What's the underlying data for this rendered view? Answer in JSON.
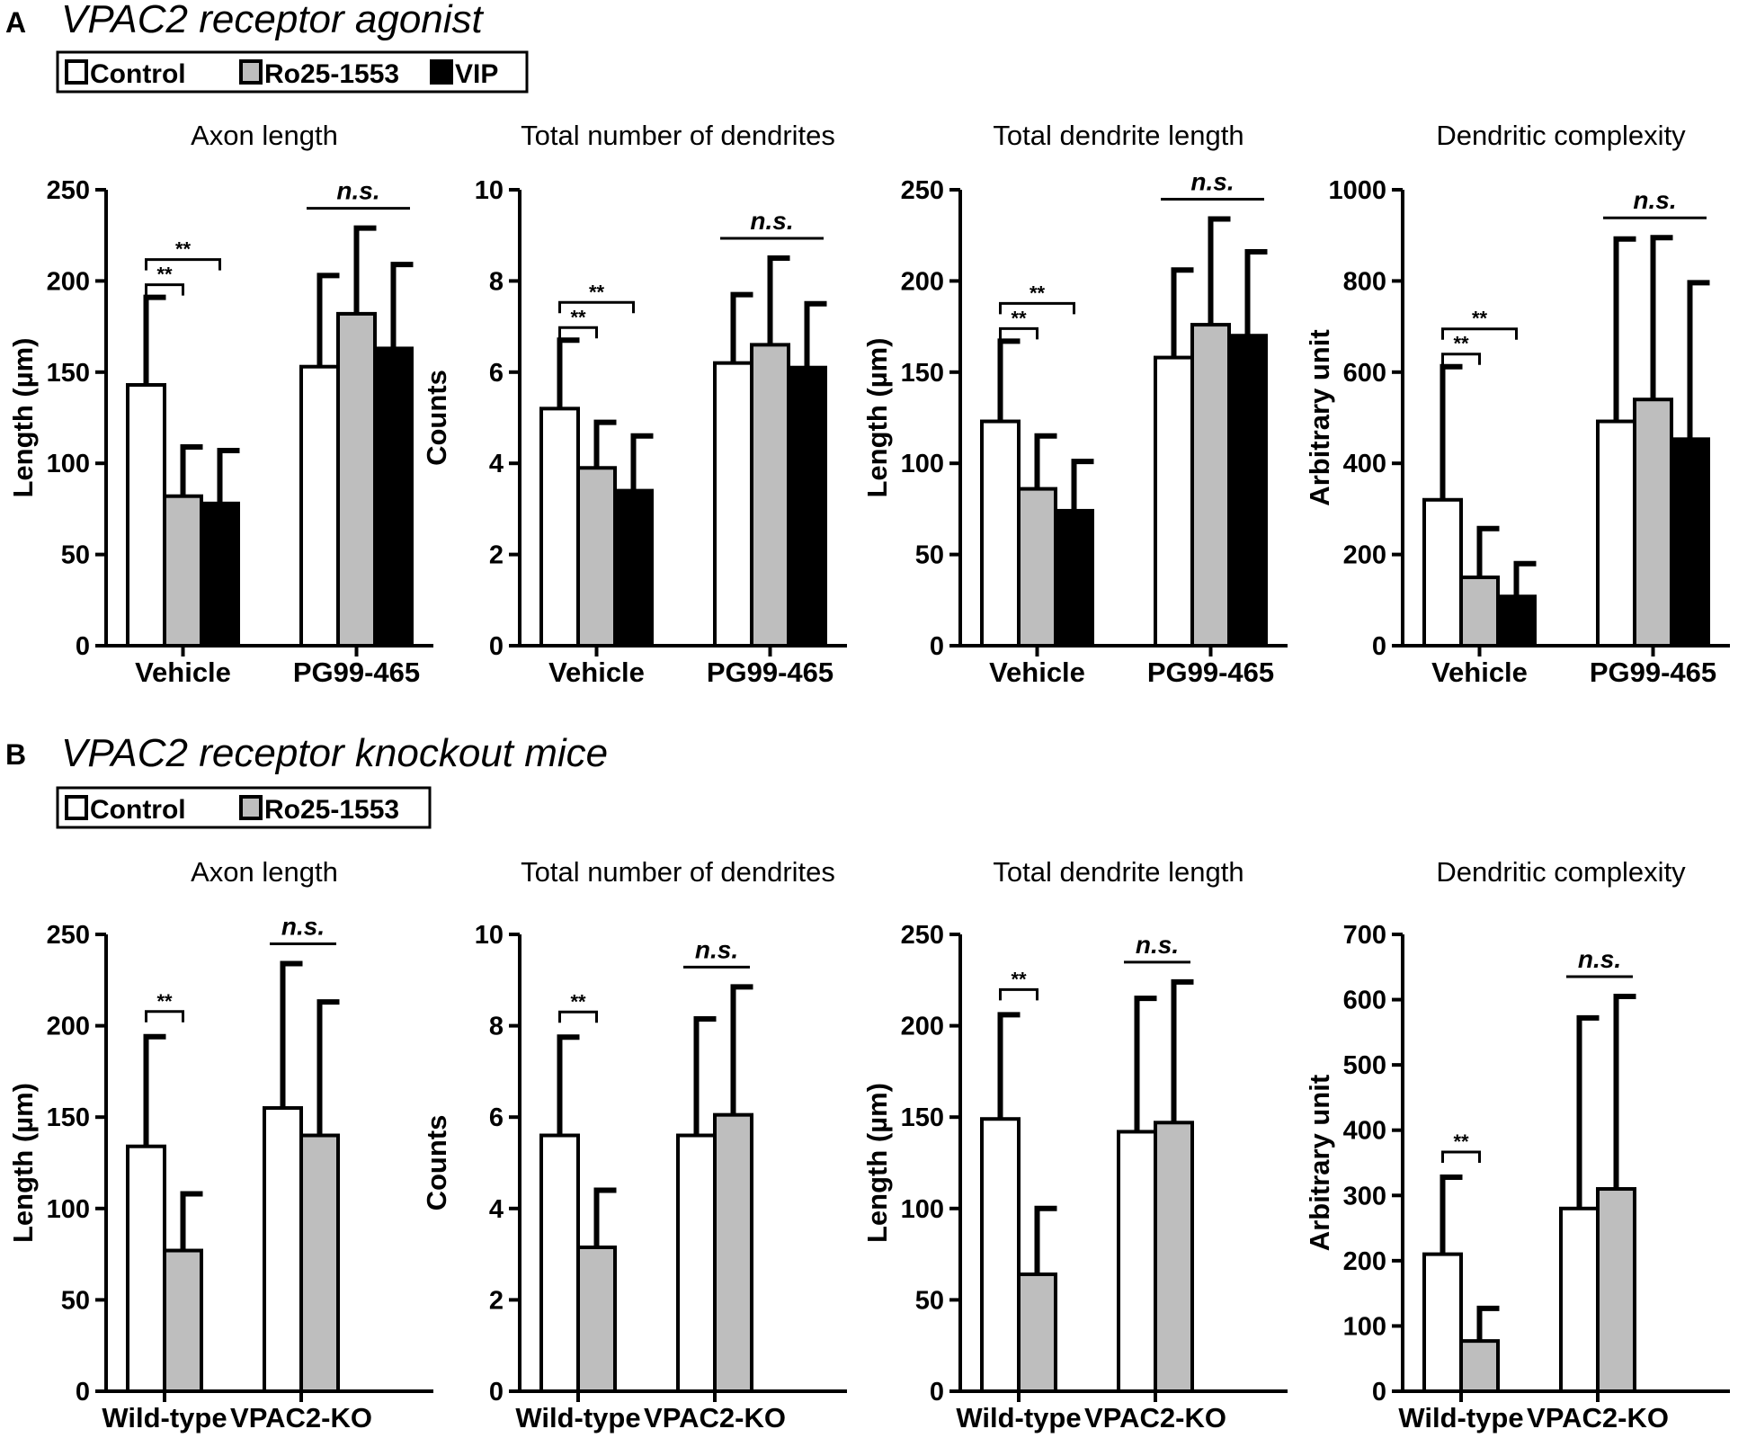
{
  "figure": {
    "panels": [
      {
        "letter": "A",
        "title": "VPAC2 receptor agonist",
        "legend": [
          {
            "label": "Control",
            "color": "#ffffff"
          },
          {
            "label": "Ro25-1553",
            "color": "#bebebe"
          },
          {
            "label": "VIP",
            "color": "#000000"
          }
        ]
      },
      {
        "letter": "B",
        "title": "VPAC2 receptor knockout mice",
        "legend": [
          {
            "label": "Control",
            "color": "#ffffff"
          },
          {
            "label": "Ro25-1553",
            "color": "#bebebe"
          }
        ]
      }
    ],
    "sig_label": "**",
    "ns_label": "n.s."
  },
  "chart_data": [
    {
      "type": "bar",
      "panel": "A",
      "title": "Axon length",
      "ylabel": "Length (µm)",
      "xlabel": "",
      "ylim": [
        0,
        250
      ],
      "yticks": [
        0,
        50,
        100,
        150,
        200,
        250
      ],
      "categories": [
        "Vehicle",
        "PG99-465"
      ],
      "series": [
        {
          "name": "Control",
          "color": "#ffffff",
          "values": [
            143,
            153
          ],
          "errors": [
            48,
            50
          ]
        },
        {
          "name": "Ro25-1553",
          "color": "#bebebe",
          "values": [
            82,
            182
          ],
          "errors": [
            27,
            47
          ]
        },
        {
          "name": "VIP",
          "color": "#000000",
          "values": [
            78,
            163
          ],
          "errors": [
            29,
            46
          ]
        }
      ],
      "significance": [
        {
          "group": 0,
          "from": 0,
          "to": 1,
          "label": "**"
        },
        {
          "group": 0,
          "from": 0,
          "to": 2,
          "label": "**"
        }
      ],
      "ns": [
        {
          "group": 1,
          "label": "n.s."
        }
      ]
    },
    {
      "type": "bar",
      "panel": "A",
      "title": "Total number of dendrites",
      "ylabel": "Counts",
      "xlabel": "",
      "ylim": [
        0,
        10
      ],
      "yticks": [
        0,
        2,
        4,
        6,
        8,
        10
      ],
      "categories": [
        "Vehicle",
        "PG99-465"
      ],
      "series": [
        {
          "name": "Control",
          "color": "#ffffff",
          "values": [
            5.2,
            6.2
          ],
          "errors": [
            1.5,
            1.5
          ]
        },
        {
          "name": "Ro25-1553",
          "color": "#bebebe",
          "values": [
            3.9,
            6.6
          ],
          "errors": [
            1.0,
            1.9
          ]
        },
        {
          "name": "VIP",
          "color": "#000000",
          "values": [
            3.4,
            6.1
          ],
          "errors": [
            1.2,
            1.4
          ]
        }
      ],
      "significance": [
        {
          "group": 0,
          "from": 0,
          "to": 1,
          "label": "**"
        },
        {
          "group": 0,
          "from": 0,
          "to": 2,
          "label": "**"
        }
      ],
      "ns": [
        {
          "group": 1,
          "label": "n.s."
        }
      ]
    },
    {
      "type": "bar",
      "panel": "A",
      "title": "Total dendrite length",
      "ylabel": "Length (µm)",
      "xlabel": "",
      "ylim": [
        0,
        250
      ],
      "yticks": [
        0,
        50,
        100,
        150,
        200,
        250
      ],
      "categories": [
        "Vehicle",
        "PG99-465"
      ],
      "series": [
        {
          "name": "Control",
          "color": "#ffffff",
          "values": [
            123,
            158
          ],
          "errors": [
            44,
            48
          ]
        },
        {
          "name": "Ro25-1553",
          "color": "#bebebe",
          "values": [
            86,
            176
          ],
          "errors": [
            29,
            58
          ]
        },
        {
          "name": "VIP",
          "color": "#000000",
          "values": [
            74,
            170
          ],
          "errors": [
            27,
            46
          ]
        }
      ],
      "significance": [
        {
          "group": 0,
          "from": 0,
          "to": 1,
          "label": "**"
        },
        {
          "group": 0,
          "from": 0,
          "to": 2,
          "label": "**"
        }
      ],
      "ns": [
        {
          "group": 1,
          "label": "n.s."
        }
      ]
    },
    {
      "type": "bar",
      "panel": "A",
      "title": "Dendritic complexity",
      "ylabel": "Arbitrary unit",
      "xlabel": "",
      "ylim": [
        0,
        1000
      ],
      "yticks": [
        0,
        200,
        400,
        600,
        800,
        1000
      ],
      "categories": [
        "Vehicle",
        "PG99-465"
      ],
      "series": [
        {
          "name": "Control",
          "color": "#ffffff",
          "values": [
            320,
            492
          ],
          "errors": [
            292,
            400
          ]
        },
        {
          "name": "Ro25-1553",
          "color": "#bebebe",
          "values": [
            150,
            540
          ],
          "errors": [
            107,
            355
          ]
        },
        {
          "name": "VIP",
          "color": "#000000",
          "values": [
            108,
            453
          ],
          "errors": [
            72,
            343
          ]
        }
      ],
      "significance": [
        {
          "group": 0,
          "from": 0,
          "to": 1,
          "label": "**"
        },
        {
          "group": 0,
          "from": 0,
          "to": 2,
          "label": "**"
        }
      ],
      "ns": [
        {
          "group": 1,
          "label": "n.s."
        }
      ]
    },
    {
      "type": "bar",
      "panel": "B",
      "title": "Axon length",
      "ylabel": "Length (µm)",
      "xlabel": "",
      "ylim": [
        0,
        250
      ],
      "yticks": [
        0,
        50,
        100,
        150,
        200,
        250
      ],
      "categories": [
        "Wild-type",
        "VPAC2-KO"
      ],
      "series": [
        {
          "name": "Control",
          "color": "#ffffff",
          "values": [
            134,
            155
          ],
          "errors": [
            60,
            79
          ]
        },
        {
          "name": "Ro25-1553",
          "color": "#bebebe",
          "values": [
            77,
            140
          ],
          "errors": [
            31,
            73
          ]
        }
      ],
      "significance": [
        {
          "group": 0,
          "from": 0,
          "to": 1,
          "label": "**"
        }
      ],
      "ns": [
        {
          "group": 1,
          "label": "n.s."
        }
      ]
    },
    {
      "type": "bar",
      "panel": "B",
      "title": "Total number of dendrites",
      "ylabel": "Counts",
      "xlabel": "",
      "ylim": [
        0,
        10
      ],
      "yticks": [
        0,
        2,
        4,
        6,
        8,
        10
      ],
      "categories": [
        "Wild-type",
        "VPAC2-KO"
      ],
      "series": [
        {
          "name": "Control",
          "color": "#ffffff",
          "values": [
            5.6,
            5.6
          ],
          "errors": [
            2.15,
            2.55
          ]
        },
        {
          "name": "Ro25-1553",
          "color": "#bebebe",
          "values": [
            3.15,
            6.05
          ],
          "errors": [
            1.25,
            2.8
          ]
        }
      ],
      "significance": [
        {
          "group": 0,
          "from": 0,
          "to": 1,
          "label": "**"
        }
      ],
      "ns": [
        {
          "group": 1,
          "label": "n.s."
        }
      ]
    },
    {
      "type": "bar",
      "panel": "B",
      "title": "Total dendrite length",
      "ylabel": "Length (µm)",
      "xlabel": "",
      "ylim": [
        0,
        250
      ],
      "yticks": [
        0,
        50,
        100,
        150,
        200,
        250
      ],
      "categories": [
        "Wild-type",
        "VPAC2-KO"
      ],
      "series": [
        {
          "name": "Control",
          "color": "#ffffff",
          "values": [
            149,
            142
          ],
          "errors": [
            57,
            73
          ]
        },
        {
          "name": "Ro25-1553",
          "color": "#bebebe",
          "values": [
            64,
            147
          ],
          "errors": [
            36,
            77
          ]
        }
      ],
      "significance": [
        {
          "group": 0,
          "from": 0,
          "to": 1,
          "label": "**"
        }
      ],
      "ns": [
        {
          "group": 1,
          "label": "n.s."
        }
      ]
    },
    {
      "type": "bar",
      "panel": "B",
      "title": "Dendritic complexity",
      "ylabel": "Arbitrary unit",
      "xlabel": "",
      "ylim": [
        0,
        700
      ],
      "yticks": [
        0,
        100,
        200,
        300,
        400,
        500,
        600,
        700
      ],
      "categories": [
        "Wild-type",
        "VPAC2-KO"
      ],
      "series": [
        {
          "name": "Control",
          "color": "#ffffff",
          "values": [
            210,
            280
          ],
          "errors": [
            118,
            292
          ]
        },
        {
          "name": "Ro25-1553",
          "color": "#bebebe",
          "values": [
            77,
            310
          ],
          "errors": [
            50,
            295
          ]
        }
      ],
      "significance": [
        {
          "group": 0,
          "from": 0,
          "to": 1,
          "label": "**"
        }
      ],
      "ns": [
        {
          "group": 1,
          "label": "n.s."
        }
      ]
    }
  ]
}
